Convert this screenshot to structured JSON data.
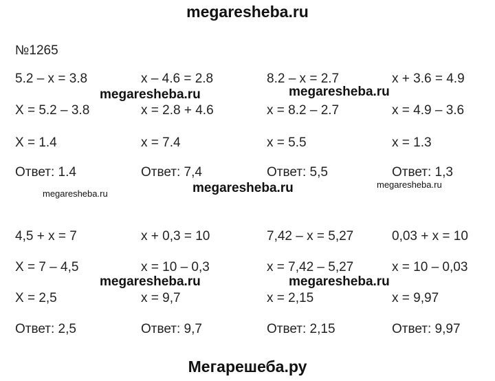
{
  "header": {
    "title": "megaresheba.ru"
  },
  "task": {
    "number": "№1265"
  },
  "blocks": [
    {
      "columns": [
        [
          "5.2 – x = 3.8",
          "X = 5.2 – 3.8",
          "X = 1.4",
          "Ответ: 1.4"
        ],
        [
          "x – 4.6 = 2.8",
          "x = 2.8 + 4.6",
          "x = 7.4",
          "Ответ: 7,4"
        ],
        [
          "8.2 – x = 2.7",
          "x = 8.2 – 2.7",
          "x = 5.5",
          "Ответ: 5,5"
        ],
        [
          "x + 3.6 = 4.9",
          "x = 4.9 – 3.6",
          "x = 1.3",
          "Ответ: 1,3"
        ]
      ]
    },
    {
      "columns": [
        [
          "4,5 + x = 7",
          "X = 7 – 4,5",
          "X = 2,5",
          "Ответ: 2,5"
        ],
        [
          "x + 0,3 = 10",
          "x = 10 – 0,3",
          "x = 9,7",
          "Ответ: 9,7"
        ],
        [
          "7,42 – x = 5,27",
          "x = 7,42 – 5,27",
          "x = 2,15",
          "Ответ: 2,15"
        ],
        [
          "0,03 + x = 10",
          "x = 10 – 0,03",
          "x = 9,97",
          "Ответ: 9,97"
        ]
      ]
    }
  ],
  "watermarks": [
    "megaresheba.ru",
    "megaresheba.ru",
    "megaresheba.ru",
    "megaresheba.ru",
    "megaresheba.ru",
    "megaresheba.ru",
    "megaresheba.ru"
  ],
  "footer": {
    "title": "Мегарешеба.ру"
  }
}
